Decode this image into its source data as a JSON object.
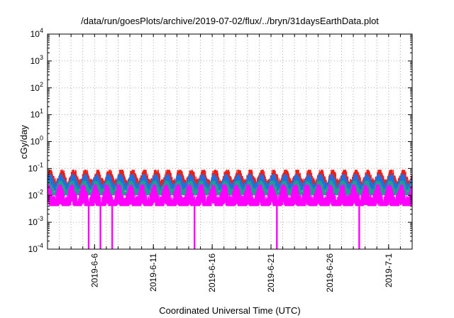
{
  "chart_data": {
    "type": "line",
    "title": "/data/run/goesPlots/archive/2019-07-02/flux/../bryn/31daysEarthData.plot",
    "xlabel": "Coordinated Universal Time (UTC)",
    "ylabel": "cGy/day",
    "yscale": "log",
    "ylim": [
      0.0001,
      10000
    ],
    "xlim": [
      "2019-06-02",
      "2019-07-03"
    ],
    "grid": true,
    "legend": "none",
    "x_ticks": [
      "2019-6-6",
      "2019-6-11",
      "2019-6-16",
      "2019-6-21",
      "2019-6-26",
      "2019-7-1"
    ],
    "y_ticks": [
      {
        "base": "10",
        "exp": "-4",
        "value": 0.0001
      },
      {
        "base": "10",
        "exp": "-3",
        "value": 0.001
      },
      {
        "base": "10",
        "exp": "-2",
        "value": 0.01
      },
      {
        "base": "10",
        "exp": "-1",
        "value": 0.1
      },
      {
        "base": "10",
        "exp": "0",
        "value": 1
      },
      {
        "base": "10",
        "exp": "1",
        "value": 10
      },
      {
        "base": "10",
        "exp": "2",
        "value": 100
      },
      {
        "base": "10",
        "exp": "3",
        "value": 1000
      },
      {
        "base": "10",
        "exp": "4",
        "value": 10000
      }
    ],
    "series": [
      {
        "color": "#e8211d",
        "low": 0.02,
        "high": 0.09
      },
      {
        "color": "#1f6fe0",
        "low": 0.015,
        "high": 0.06
      },
      {
        "color": "#1fa08f",
        "low": 0.01,
        "high": 0.035
      },
      {
        "color": "#ff00ff",
        "low": 0.004,
        "high": 0.025
      }
    ],
    "dropouts": [
      {
        "date": "2019-06-05",
        "series_color": "#ff00ff"
      },
      {
        "date": "2019-06-06",
        "series_color": "#ff00ff"
      },
      {
        "date": "2019-06-07",
        "series_color": "#ff00ff"
      },
      {
        "date": "2019-06-14",
        "series_color": "#ff00ff"
      },
      {
        "date": "2019-06-21",
        "series_color": "#ff00ff"
      },
      {
        "date": "2019-06-28",
        "series_color": "#ff00ff"
      }
    ]
  }
}
